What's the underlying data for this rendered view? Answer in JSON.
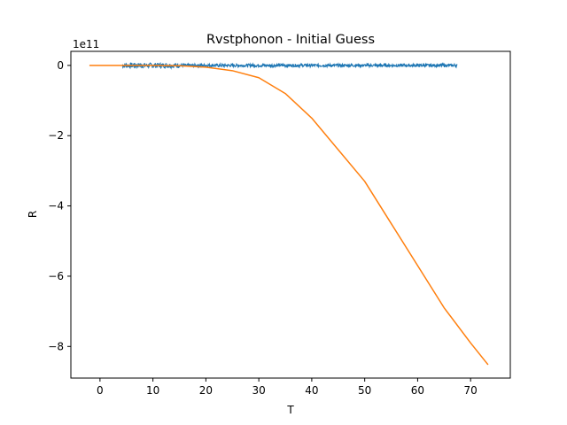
{
  "chart_data": {
    "type": "line",
    "title": "Rvstphonon - Initial Guess",
    "xlabel": "T",
    "ylabel": "R",
    "y_offset_label": "1e11",
    "xlim": [
      -5.5,
      77.5
    ],
    "ylim": [
      -8.9,
      0.4
    ],
    "x_ticks": [
      0,
      10,
      20,
      30,
      40,
      50,
      60,
      70
    ],
    "y_ticks": [
      0,
      -2,
      -4,
      -6,
      -8
    ],
    "grid": false,
    "legend": "none",
    "series": [
      {
        "color": "#1f77b4",
        "style": "noisy-data",
        "x_range": [
          4.2,
          67.5
        ],
        "values_approx": 0.0,
        "noise_amplitude": 0.04
      },
      {
        "color": "#ff7f0e",
        "style": "fit-curve",
        "x": [
          -2,
          0,
          5,
          10,
          15,
          20,
          25,
          30,
          35,
          40,
          45,
          50,
          55,
          60,
          65,
          70,
          73.3
        ],
        "values": [
          0.0,
          0.0,
          0.0,
          0.0,
          -0.01,
          -0.05,
          -0.15,
          -0.35,
          -0.8,
          -1.5,
          -2.4,
          -3.3,
          -4.5,
          -5.7,
          -6.9,
          -7.9,
          -8.52
        ]
      }
    ]
  }
}
